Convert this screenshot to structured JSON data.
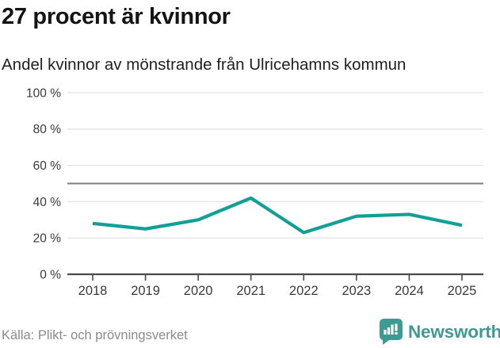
{
  "header": {
    "title": "27 procent är kvinnor",
    "subtitle": "Andel kvinnor av mönstrande från Ulricehamns kommun"
  },
  "footer": {
    "source": "Källa: Plikt- och prövningsverket",
    "brand": "Newsworthy"
  },
  "colors": {
    "line": "#12A096",
    "grid": "#e4e4e4",
    "reference_line": "#7d7d7d",
    "axis": "#4a4a4a",
    "tick_label": "#3a3a3a",
    "title_text": "#141414",
    "source_text": "#8b8b8b",
    "brand_teal": "#3E9B94",
    "logo_glyph": "#ffffff"
  },
  "chart_data": {
    "type": "line",
    "title": "27 procent är kvinnor",
    "subtitle": "Andel kvinnor av mönstrande från Ulricehamns kommun",
    "x": [
      "2018",
      "2019",
      "2020",
      "2021",
      "2022",
      "2023",
      "2024",
      "2025"
    ],
    "series": [
      {
        "name": "Andel kvinnor av mönstrande",
        "values": [
          28,
          25,
          30,
          42,
          23,
          32,
          33,
          27
        ]
      }
    ],
    "unit": "%",
    "ylim": [
      0,
      100
    ],
    "yticks": [
      0,
      20,
      40,
      60,
      80,
      100
    ],
    "ytick_labels": [
      "0 %",
      "20 %",
      "40 %",
      "60 %",
      "80 %",
      "100 %"
    ],
    "reference_line": 50,
    "grid": true,
    "legend": "none"
  }
}
